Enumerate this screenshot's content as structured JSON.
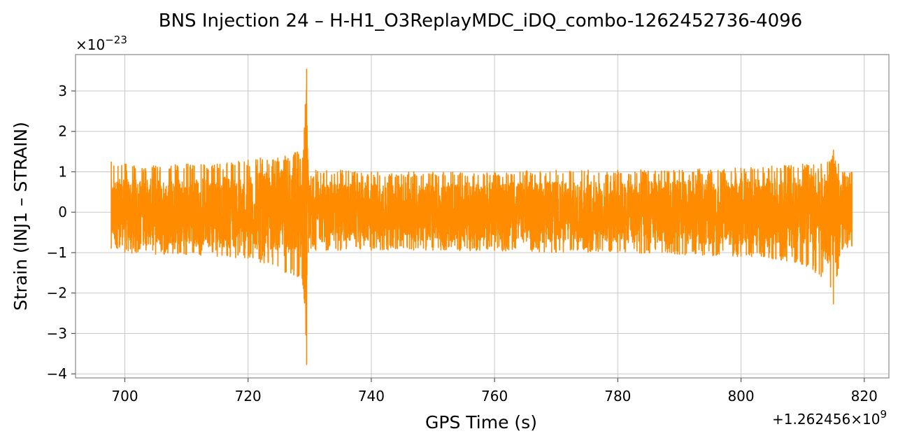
{
  "chart_data": {
    "type": "line",
    "title": "BNS Injection 24 – H-H1_O3ReplayMDC_iDQ_combo-1262452736-4096",
    "xlabel": "GPS Time (s)",
    "ylabel": "Strain (INJ1 – STRAIN)",
    "x_offset_label": "+1.262456×10^9",
    "x_offset_base": "+1.262456",
    "x_offset_exp": "9",
    "y_scale_label": "×10^−23",
    "y_scale_base": "×10",
    "y_scale_exp": "−23",
    "xlim": [
      692,
      824
    ],
    "ylim": [
      -4.1,
      3.9
    ],
    "xticks": [
      700,
      720,
      740,
      760,
      780,
      800,
      820
    ],
    "xtick_labels": [
      "700",
      "720",
      "740",
      "760",
      "780",
      "800",
      "820"
    ],
    "yticks": [
      -4,
      -3,
      -2,
      -1,
      0,
      1,
      2,
      3
    ],
    "ytick_labels": [
      "−4",
      "−3",
      "−2",
      "−1",
      "0",
      "1",
      "2",
      "3"
    ],
    "grid": true,
    "color": "#ff8c00",
    "series": [
      {
        "x_range": [
          697.8,
          818.0
        ],
        "envelope_x": [
          697.8,
          700,
          705,
          710,
          715,
          720,
          722,
          724,
          726,
          728,
          729,
          729.5,
          729.8,
          730.2,
          731,
          735,
          740,
          750,
          760,
          770,
          780,
          790,
          800,
          805,
          810,
          813,
          815,
          815.8,
          816.5,
          818.0
        ],
        "envelope_max": [
          1.25,
          1.2,
          1.15,
          1.2,
          1.2,
          1.3,
          1.35,
          1.3,
          1.4,
          1.5,
          1.55,
          3.55,
          0.9,
          0.9,
          1.05,
          1.05,
          1.0,
          1.0,
          1.0,
          1.05,
          1.05,
          1.05,
          1.1,
          1.15,
          1.2,
          1.2,
          1.55,
          1.2,
          1.0,
          1.0
        ],
        "envelope_min": [
          -0.9,
          -1.0,
          -1.05,
          -1.05,
          -1.1,
          -1.15,
          -1.25,
          -1.3,
          -1.5,
          -1.6,
          -1.9,
          -3.78,
          -1.0,
          -0.9,
          -0.95,
          -0.95,
          -0.95,
          -0.95,
          -0.95,
          -1.0,
          -1.0,
          -1.05,
          -1.1,
          -1.15,
          -1.3,
          -1.6,
          -2.28,
          -1.4,
          -0.9,
          -0.85
        ]
      }
    ]
  }
}
